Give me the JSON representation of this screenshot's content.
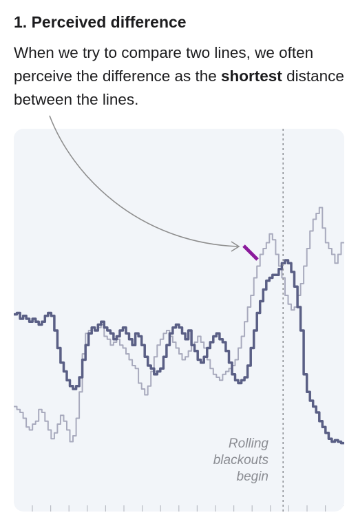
{
  "header": {
    "title": "1. Perceived difference",
    "text_before": "When we try to compare two lines, we often perceive the difference as the ",
    "text_bold": "shortest",
    "text_after": " distance between the lines."
  },
  "colors": {
    "primary_line": "#5a5f85",
    "secondary_line": "#a8aabd",
    "highlight": "#8b1a9c",
    "arrow": "#8e8e8e",
    "marker": "#8a8c92",
    "panel_bg": "#f2f5f9"
  },
  "chart_data": {
    "type": "line",
    "title": "1. Perceived difference",
    "xlabel": "",
    "ylabel": "",
    "x_tick_count": 18,
    "grid": false,
    "legend": "none",
    "style": "step",
    "annotation": {
      "marker_x": 0.815,
      "lines": [
        "Rolling",
        "blackouts",
        "begin"
      ]
    },
    "series": [
      {
        "role": "primary",
        "values": [
          45.5,
          46,
          44,
          45,
          44,
          43,
          44,
          43,
          42,
          43,
          45,
          46,
          45,
          40,
          34,
          29,
          26,
          23,
          21,
          20,
          21,
          24,
          30,
          35,
          39,
          41,
          40,
          42,
          43,
          41,
          40,
          39,
          37,
          38,
          40,
          41,
          39,
          37,
          35,
          39,
          38,
          35,
          31,
          28,
          27,
          25,
          26,
          27,
          31,
          35,
          39,
          41,
          42,
          41,
          39,
          37,
          40,
          35,
          33,
          30,
          29,
          31,
          34,
          36,
          38,
          39,
          37,
          36,
          33,
          29,
          25,
          23,
          22,
          23,
          24,
          28,
          34,
          40,
          46,
          50,
          54,
          57,
          58,
          59,
          59,
          61,
          63,
          64,
          63,
          60,
          55,
          48,
          40,
          25,
          19,
          16,
          14,
          12,
          9,
          7,
          5,
          3,
          2,
          2.5,
          2,
          1.5
        ]
      },
      {
        "role": "secondary",
        "values": [
          14,
          13,
          12,
          10,
          7,
          6,
          8,
          9,
          13,
          12,
          9,
          6,
          3,
          5,
          8,
          11,
          9,
          6,
          2,
          4,
          10,
          19,
          32,
          39,
          40,
          41,
          40,
          41,
          42,
          38,
          37,
          35,
          36,
          37,
          35,
          34,
          32,
          30,
          28,
          27,
          22,
          20,
          18,
          21,
          26,
          31,
          35,
          37,
          39,
          40,
          38,
          36,
          34,
          32,
          30,
          31,
          33,
          35,
          36,
          38,
          36,
          34,
          30,
          27,
          25,
          24,
          23,
          25,
          26,
          27,
          28,
          30,
          34,
          38,
          43,
          48,
          52,
          58,
          62,
          66,
          68,
          70,
          73,
          71,
          66,
          62,
          58,
          52,
          49,
          47,
          48,
          52,
          56,
          62,
          68,
          74,
          78,
          80,
          82,
          75,
          70,
          68,
          66,
          63,
          66,
          70
        ]
      }
    ]
  }
}
